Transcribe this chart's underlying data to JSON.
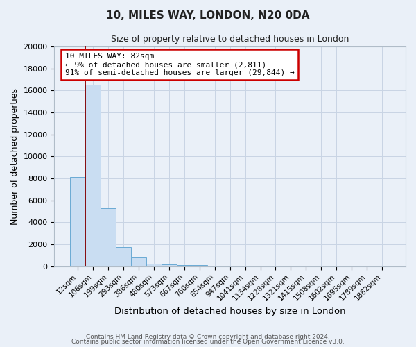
{
  "title": "10, MILES WAY, LONDON, N20 0DA",
  "subtitle": "Size of property relative to detached houses in London",
  "xlabel": "Distribution of detached houses by size in London",
  "ylabel": "Number of detached properties",
  "bar_labels": [
    "12sqm",
    "106sqm",
    "199sqm",
    "293sqm",
    "386sqm",
    "480sqm",
    "573sqm",
    "667sqm",
    "760sqm",
    "854sqm",
    "947sqm",
    "1041sqm",
    "1134sqm",
    "1228sqm",
    "1321sqm",
    "1415sqm",
    "1508sqm",
    "1602sqm",
    "1695sqm",
    "1789sqm",
    "1882sqm"
  ],
  "bar_heights": [
    8100,
    16500,
    5300,
    1750,
    800,
    250,
    150,
    110,
    110,
    0,
    0,
    0,
    0,
    0,
    0,
    0,
    0,
    0,
    0,
    0,
    0
  ],
  "bar_color": "#c9ddf2",
  "bar_edge_color": "#6aaad4",
  "ylim": [
    0,
    20000
  ],
  "yticks": [
    0,
    2000,
    4000,
    6000,
    8000,
    10000,
    12000,
    14000,
    16000,
    18000,
    20000
  ],
  "property_line_color": "#8b0000",
  "annotation_title": "10 MILES WAY: 82sqm",
  "annotation_line1": "← 9% of detached houses are smaller (2,811)",
  "annotation_line2": "91% of semi-detached houses are larger (29,844) →",
  "annotation_box_facecolor": "#ffffff",
  "annotation_box_edgecolor": "#cc0000",
  "grid_color": "#c8d4e4",
  "background_color": "#eaf0f8",
  "footer_line1": "Contains HM Land Registry data © Crown copyright and database right 2024.",
  "footer_line2": "Contains public sector information licensed under the Open Government Licence v3.0."
}
